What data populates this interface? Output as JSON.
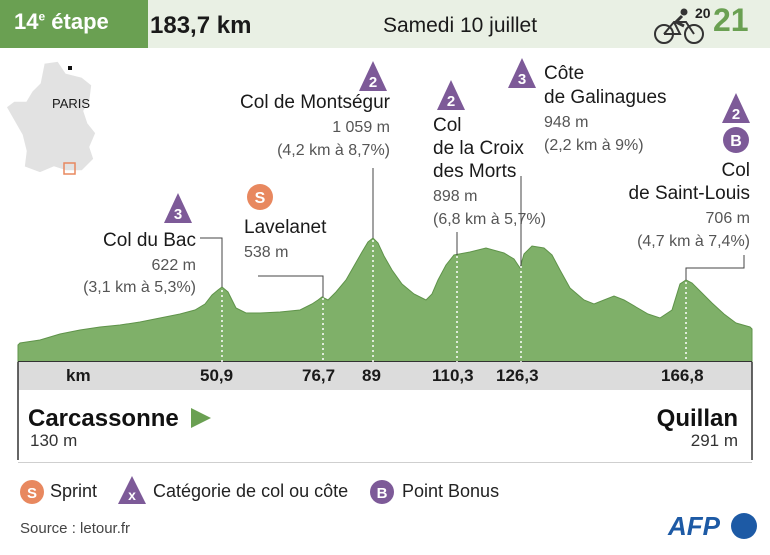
{
  "header": {
    "stage_number": "14",
    "stage_sup": "e",
    "stage_word": "étape",
    "distance": "183,7 km",
    "date": "Samedi 10 juillet",
    "year_top": "20",
    "year_bottom": "21"
  },
  "map": {
    "city": "PARIS"
  },
  "climbs": [
    {
      "name": "Col du Bac",
      "category": "3",
      "altitude": "622 m",
      "detail": "(3,1 km à 5,3%)"
    },
    {
      "name": "Col de Montségur",
      "category": "2",
      "altitude": "1 059 m",
      "detail": "(4,2 km à 8,7%)"
    },
    {
      "name_1": "Col",
      "name_2": "de la Croix",
      "name_3": "des Morts",
      "category": "2",
      "altitude": "898 m",
      "detail": "(6,8 km à 5,7%)"
    },
    {
      "name_1": "Côte",
      "name_2": "de Galinagues",
      "category": "3",
      "altitude": "948 m",
      "detail": "(2,2 km à 9%)"
    },
    {
      "name_1": "Col",
      "name_2": "de Saint-Louis",
      "category": "2",
      "bonus": "B",
      "altitude": "706 m",
      "detail": "(4,7 km à 7,4%)"
    }
  ],
  "sprint": {
    "name": "Lavelanet",
    "marker": "S",
    "altitude": "538 m"
  },
  "km_axis": {
    "label": "km",
    "ticks": [
      "50,9",
      "76,7",
      "89",
      "110,3",
      "126,3",
      "166,8"
    ]
  },
  "start": {
    "city": "Carcassonne",
    "altitude": "130 m"
  },
  "finish": {
    "city": "Quillan",
    "altitude": "291 m"
  },
  "legend": {
    "sprint": "Sprint",
    "sprint_marker": "S",
    "category": "Catégorie de col ou côte",
    "category_marker": "x",
    "bonus": "Point Bonus",
    "bonus_marker": "B"
  },
  "source": "Source : letour.fr",
  "brand": "AFP",
  "colors": {
    "green": "#6aa052",
    "profile": "#7fb069",
    "purple": "#7d5a98",
    "sprint": "#e8885f",
    "header_bg": "#e9f0e4"
  }
}
